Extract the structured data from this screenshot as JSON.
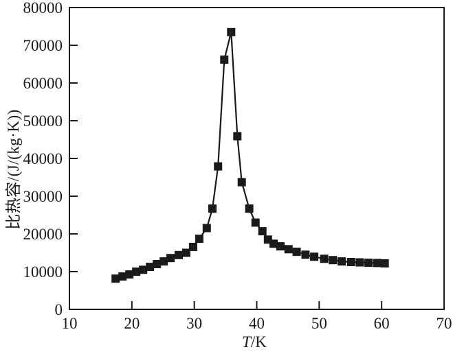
{
  "figure": {
    "background_color": "#ffffff",
    "ink_color": "#1a1a1a"
  },
  "chart_data": {
    "type": "line",
    "title": "",
    "xlabel_variable": "T",
    "xlabel_unit": "/K",
    "ylabel": "比热容/(J/(kg·K))",
    "xlim": [
      10,
      70
    ],
    "ylim": [
      0,
      80000
    ],
    "xticks": [
      10,
      20,
      30,
      40,
      50,
      60,
      70
    ],
    "yticks": [
      0,
      10000,
      20000,
      30000,
      40000,
      50000,
      60000,
      70000,
      80000
    ],
    "grid": false,
    "legend": "none",
    "marker": "square",
    "line_color": "#1a1a1a",
    "marker_color": "#1a1a1a",
    "frame": "full-box",
    "tick_direction": "in",
    "series": [
      {
        "name": "specific-heat-capacity",
        "points": [
          [
            17.4,
            8150
          ],
          [
            18.5,
            8700
          ],
          [
            19.6,
            9250
          ],
          [
            20.7,
            10000
          ],
          [
            21.8,
            10500
          ],
          [
            22.9,
            11250
          ],
          [
            24.0,
            12000
          ],
          [
            25.1,
            12700
          ],
          [
            26.2,
            13600
          ],
          [
            27.5,
            14400
          ],
          [
            28.7,
            15000
          ],
          [
            29.8,
            16550
          ],
          [
            30.8,
            18700
          ],
          [
            32.0,
            21550
          ],
          [
            32.9,
            26700
          ],
          [
            33.8,
            37900
          ],
          [
            34.8,
            66200
          ],
          [
            35.9,
            73500
          ],
          [
            36.9,
            45900
          ],
          [
            37.6,
            33700
          ],
          [
            38.8,
            26700
          ],
          [
            39.8,
            23000
          ],
          [
            40.9,
            20700
          ],
          [
            41.8,
            18500
          ],
          [
            42.7,
            17400
          ],
          [
            43.8,
            16700
          ],
          [
            45.1,
            15950
          ],
          [
            46.4,
            15250
          ],
          [
            47.8,
            14500
          ],
          [
            49.2,
            13950
          ],
          [
            50.8,
            13400
          ],
          [
            52.2,
            13050
          ],
          [
            53.6,
            12700
          ],
          [
            55.1,
            12550
          ],
          [
            56.5,
            12450
          ],
          [
            57.9,
            12350
          ],
          [
            59.3,
            12300
          ],
          [
            60.5,
            12200
          ]
        ]
      }
    ]
  }
}
